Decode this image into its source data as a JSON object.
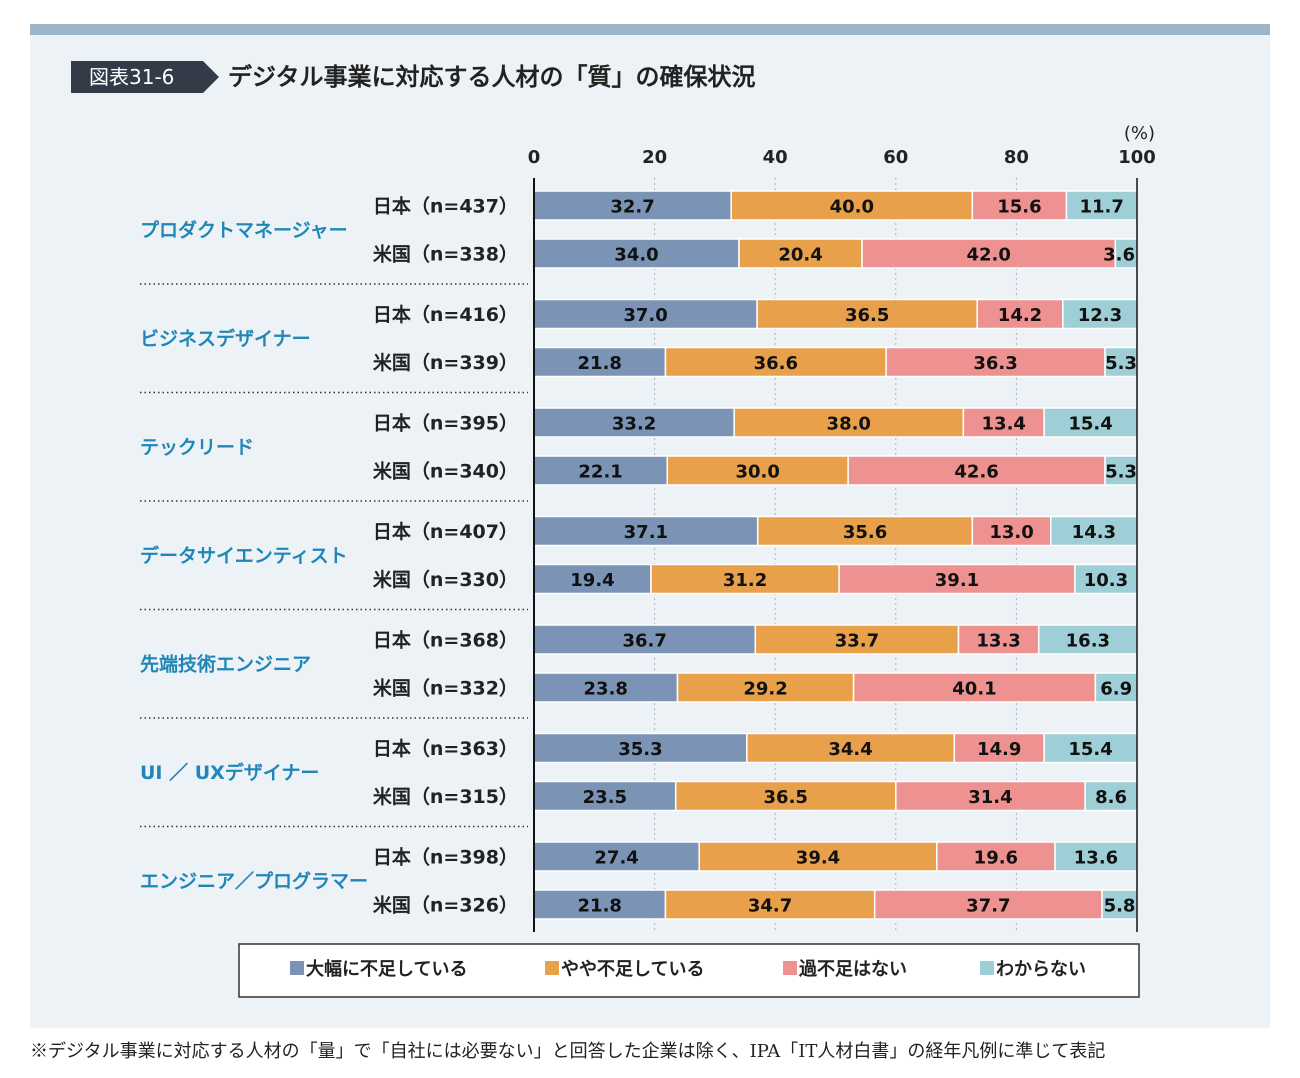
{
  "figure": {
    "label": "図表31-6",
    "title": "デジタル事業に対応する人材の「質」の確保状況"
  },
  "footnote": "※デジタル事業に対応する人材の「量」で「自社には必要ない」と回答した企業は除く、IPA「IT人材白書」の経年凡例に準じて表記",
  "colors": {
    "severe": "#7b93b5",
    "somewhat": "#e8a04a",
    "none": "#ee9191",
    "unknown": "#9fcfd6"
  },
  "chart_data": {
    "type": "bar",
    "orientation": "horizontal",
    "stacked": true,
    "unit_label": "(%)",
    "xlim": [
      0,
      100
    ],
    "xticks": [
      "0",
      "20",
      "40",
      "60",
      "80",
      "100"
    ],
    "grid": "dotted vertical",
    "legend_position": "bottom",
    "series": [
      {
        "name": "大幅に不足している",
        "color": "#7b93b5"
      },
      {
        "name": "やや不足している",
        "color": "#e8a04a"
      },
      {
        "name": "過不足はない",
        "color": "#ee9191"
      },
      {
        "name": "わからない",
        "color": "#9fcfd6"
      }
    ],
    "groups": [
      {
        "category": "プロダクトマネージャー",
        "rows": [
          {
            "label": "日本（n=437）",
            "values": [
              32.7,
              40.0,
              15.6,
              11.7
            ]
          },
          {
            "label": "米国（n=338）",
            "values": [
              34.0,
              20.4,
              42.0,
              3.6
            ]
          }
        ]
      },
      {
        "category": "ビジネスデザイナー",
        "rows": [
          {
            "label": "日本（n=416）",
            "values": [
              37.0,
              36.5,
              14.2,
              12.3
            ]
          },
          {
            "label": "米国（n=339）",
            "values": [
              21.8,
              36.6,
              36.3,
              5.3
            ]
          }
        ]
      },
      {
        "category": "テックリード",
        "rows": [
          {
            "label": "日本（n=395）",
            "values": [
              33.2,
              38.0,
              13.4,
              15.4
            ]
          },
          {
            "label": "米国（n=340）",
            "values": [
              22.1,
              30.0,
              42.6,
              5.3
            ]
          }
        ]
      },
      {
        "category": "データサイエンティスト",
        "rows": [
          {
            "label": "日本（n=407）",
            "values": [
              37.1,
              35.6,
              13.0,
              14.3
            ]
          },
          {
            "label": "米国（n=330）",
            "values": [
              19.4,
              31.2,
              39.1,
              10.3
            ]
          }
        ]
      },
      {
        "category": "先端技術エンジニア",
        "rows": [
          {
            "label": "日本（n=368）",
            "values": [
              36.7,
              33.7,
              13.3,
              16.3
            ]
          },
          {
            "label": "米国（n=332）",
            "values": [
              23.8,
              29.2,
              40.1,
              6.9
            ]
          }
        ]
      },
      {
        "category": "UI ／ UXデザイナー",
        "rows": [
          {
            "label": "日本（n=363）",
            "values": [
              35.3,
              34.4,
              14.9,
              15.4
            ]
          },
          {
            "label": "米国（n=315）",
            "values": [
              23.5,
              36.5,
              31.4,
              8.6
            ]
          }
        ]
      },
      {
        "category": "エンジニア／プログラマー",
        "rows": [
          {
            "label": "日本（n=398）",
            "values": [
              27.4,
              39.4,
              19.6,
              13.6
            ]
          },
          {
            "label": "米国（n=326）",
            "values": [
              21.8,
              34.7,
              37.7,
              5.8
            ]
          }
        ]
      }
    ]
  }
}
